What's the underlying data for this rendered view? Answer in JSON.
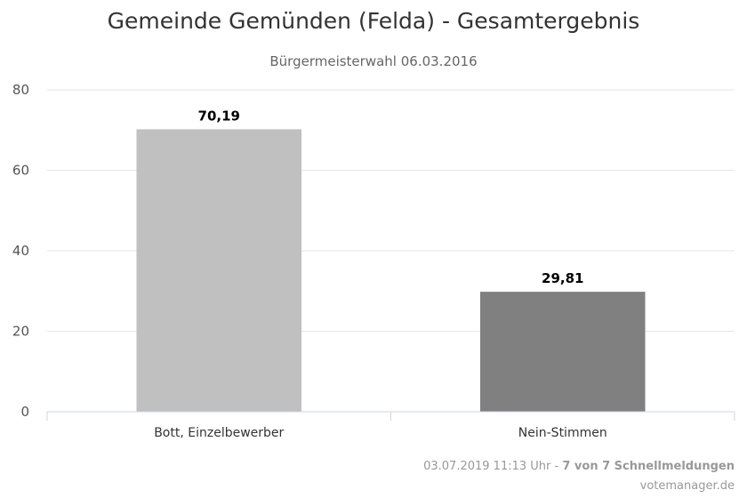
{
  "chart_data": {
    "type": "bar",
    "title": "Gemeinde Gemünden (Felda) - Gesamtergebnis",
    "subtitle": "Bürgermeisterwahl 06.03.2016",
    "categories": [
      "Bott, Einzelbewerber",
      "Nein-Stimmen"
    ],
    "values": [
      70.19,
      29.81
    ],
    "data_labels": [
      "70,19",
      "29,81"
    ],
    "colors": [
      "#c0c0c0",
      "#808080"
    ],
    "ylim": [
      0,
      80
    ],
    "yticks": [
      0,
      20,
      40,
      60,
      80
    ],
    "grid": true,
    "xlabel": "",
    "ylabel": ""
  },
  "credits": {
    "timestamp": "03.07.2019 11:13 Uhr",
    "separator": " - ",
    "status": "7 von 7 Schnellmeldungen",
    "source": "votemanager.de"
  }
}
